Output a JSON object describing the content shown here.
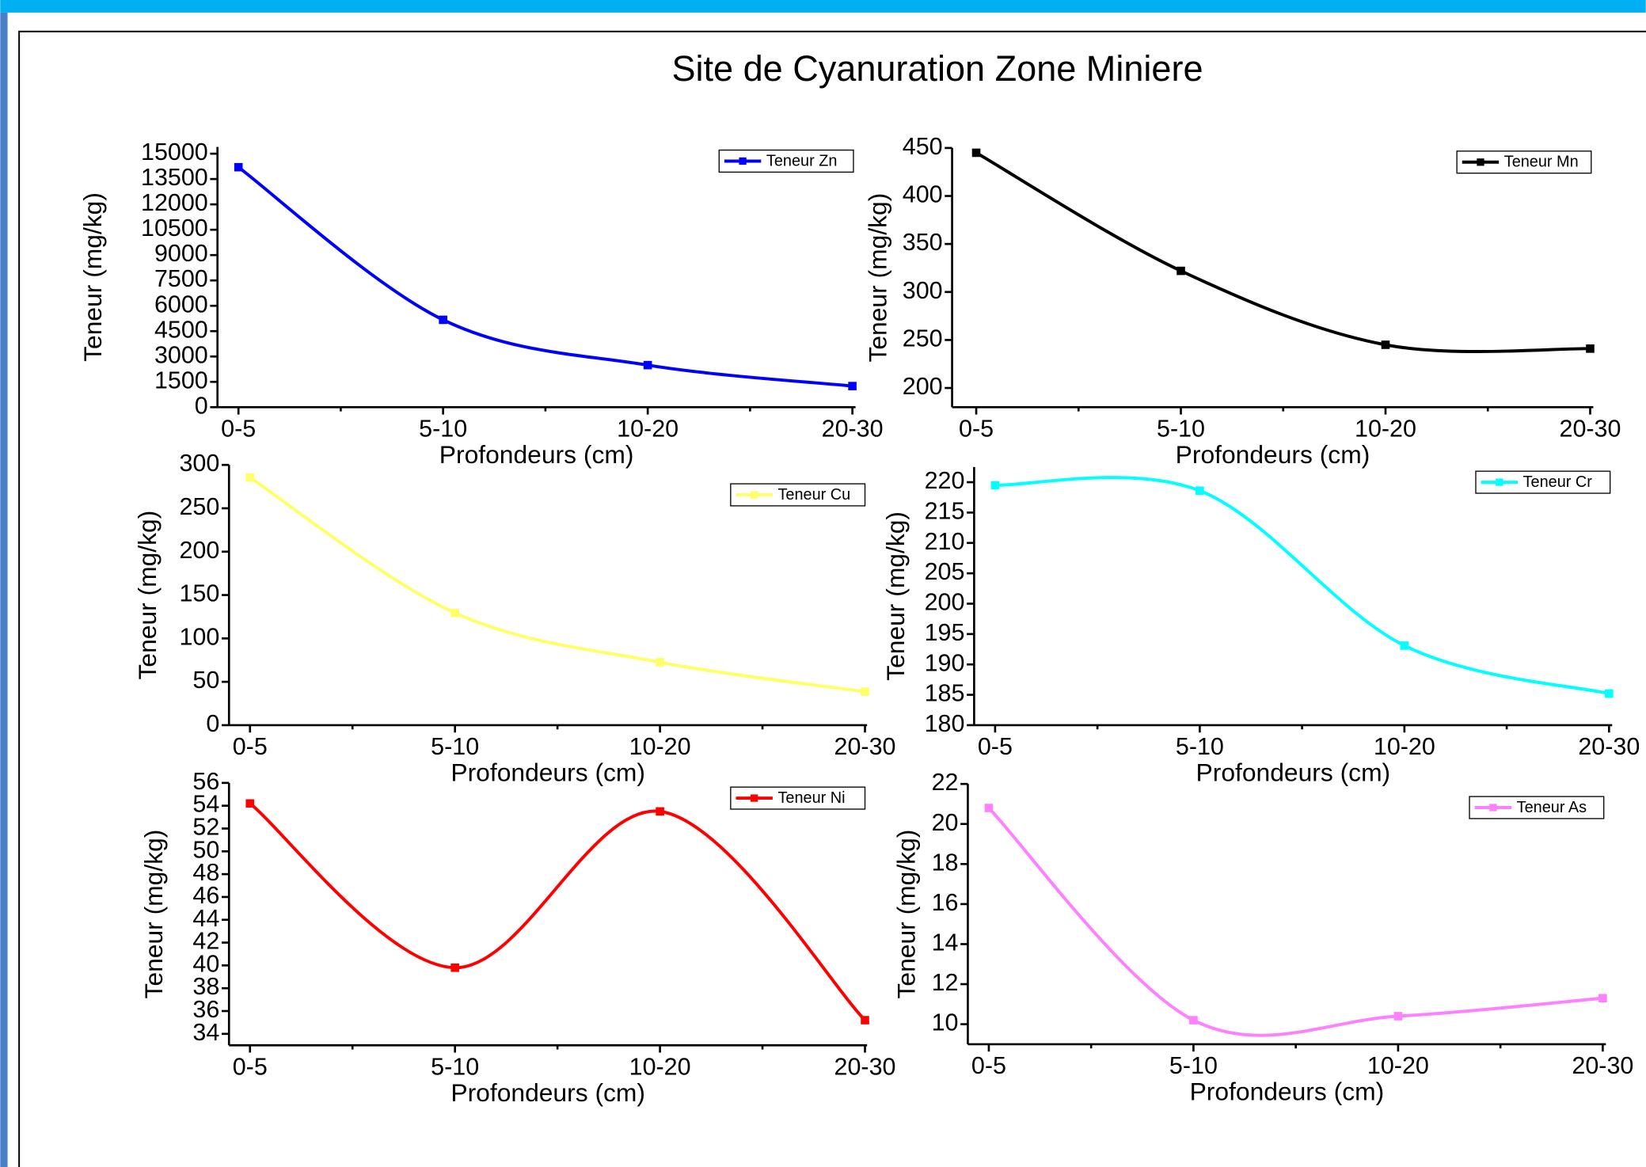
{
  "title": "Site de Cyanuration Zone Miniere",
  "chart_data": [
    {
      "type": "line",
      "xlabel": "Profondeurs (cm)",
      "ylabel": "Teneur (mg/kg)",
      "categories": [
        "0-5",
        "5-10",
        "10-20",
        "20-30"
      ],
      "series": [
        {
          "name": "Teneur Zn",
          "color": "#0000ff",
          "values": [
            14200,
            5170,
            2490,
            1250
          ]
        }
      ],
      "ylim": [
        0,
        15400
      ],
      "yticks": [
        0,
        1500,
        3000,
        4500,
        6000,
        7500,
        9000,
        10500,
        12000,
        13500,
        15000
      ],
      "smooth": true
    },
    {
      "type": "line",
      "xlabel": "Profondeurs (cm)",
      "ylabel": "Teneur (mg/kg)",
      "categories": [
        "0-5",
        "5-10",
        "10-20",
        "20-30"
      ],
      "series": [
        {
          "name": "Teneur Mn",
          "color": "#000000",
          "values": [
            445,
            322,
            245,
            241
          ]
        }
      ],
      "ylim": [
        180,
        450
      ],
      "yticks": [
        200,
        250,
        300,
        350,
        400,
        450
      ],
      "smooth": true
    },
    {
      "type": "line",
      "xlabel": "Profondeurs (cm)",
      "ylabel": "Teneur (mg/kg)",
      "categories": [
        "0-5",
        "5-10",
        "10-20",
        "20-30"
      ],
      "series": [
        {
          "name": "Teneur Cu",
          "color": "#ffff66",
          "values": [
            285.5,
            129.4,
            72.6,
            38.7
          ]
        }
      ],
      "ylim": [
        0,
        300
      ],
      "yticks": [
        0,
        50,
        100,
        150,
        200,
        250,
        300
      ],
      "smooth": true
    },
    {
      "type": "line",
      "xlabel": "Profondeurs (cm)",
      "ylabel": "Teneur (mg/kg)",
      "categories": [
        "0-5",
        "5-10",
        "10-20",
        "20-30"
      ],
      "series": [
        {
          "name": "Teneur Cr",
          "color": "#00ffff",
          "values": [
            219.5,
            218.6,
            193.1,
            185.2
          ]
        }
      ],
      "ylim": [
        180,
        222.5
      ],
      "yticks": [
        180,
        185,
        190,
        195,
        200,
        205,
        210,
        215,
        220
      ],
      "smooth": true
    },
    {
      "type": "line",
      "xlabel": "Profondeurs (cm)",
      "ylabel": "Teneur (mg/kg)",
      "categories": [
        "0-5",
        "5-10",
        "10-20",
        "20-30"
      ],
      "series": [
        {
          "name": "Teneur Ni",
          "color": "#ff0000",
          "values": [
            54.2,
            39.8,
            53.5,
            35.2
          ]
        }
      ],
      "ylim": [
        33,
        56
      ],
      "yticks": [
        34,
        36,
        38,
        40,
        42,
        44,
        46,
        48,
        50,
        52,
        54,
        56
      ],
      "smooth": true
    },
    {
      "type": "line",
      "xlabel": "Profondeurs (cm)",
      "ylabel": "Teneur (mg/kg)",
      "categories": [
        "0-5",
        "5-10",
        "10-20",
        "20-30"
      ],
      "series": [
        {
          "name": "Teneur As",
          "color": "#ff80ff",
          "values": [
            20.8,
            10.2,
            10.4,
            11.3
          ]
        }
      ],
      "ylim": [
        9,
        22
      ],
      "yticks": [
        10,
        12,
        14,
        16,
        18,
        20,
        22
      ],
      "smooth": true
    }
  ]
}
